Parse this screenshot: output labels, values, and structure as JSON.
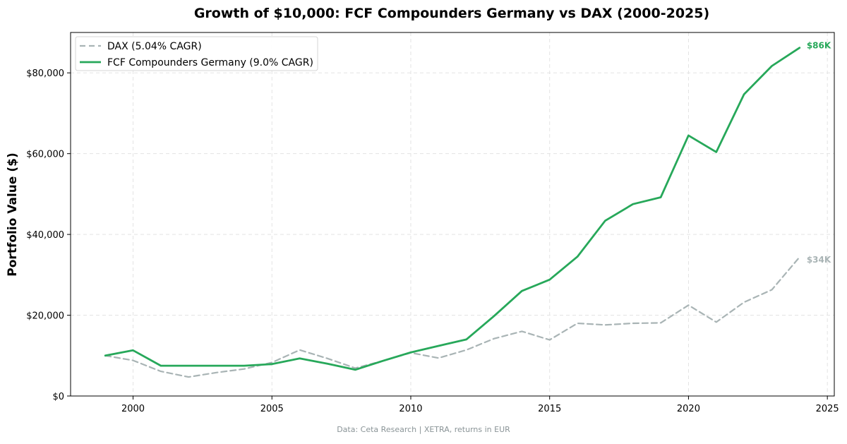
{
  "chart_data": {
    "type": "line",
    "title": "Growth of $10,000: FCF Compounders Germany vs DAX (2000-2025)",
    "xlabel": "",
    "ylabel": "Portfolio Value ($)",
    "xlim": [
      1997.75,
      2025.25
    ],
    "ylim": [
      0,
      90000
    ],
    "grid": true,
    "legend_position": "top-left",
    "x_ticks": [
      2000,
      2005,
      2010,
      2015,
      2020,
      2025
    ],
    "x_tick_labels": [
      "2000",
      "2005",
      "2010",
      "2015",
      "2020",
      "2025"
    ],
    "y_ticks": [
      0,
      20000,
      40000,
      60000,
      80000
    ],
    "y_tick_labels": [
      "$0",
      "$20,000",
      "$40,000",
      "$60,000",
      "$80,000"
    ],
    "x": [
      1999,
      2000,
      2001,
      2002,
      2003,
      2004,
      2005,
      2006,
      2007,
      2008,
      2009,
      2010,
      2011,
      2012,
      2013,
      2014,
      2015,
      2016,
      2017,
      2018,
      2019,
      2020,
      2021,
      2022,
      2023,
      2024
    ],
    "series": [
      {
        "name": "DAX (5.04% CAGR)",
        "color": "#a9b4b5",
        "dashed": true,
        "values": [
          10000,
          8800,
          6100,
          4700,
          5800,
          6700,
          8300,
          11400,
          9300,
          6900,
          8700,
          10700,
          9400,
          11400,
          14200,
          16000,
          13900,
          18000,
          17600,
          18000,
          18100,
          22500,
          18300,
          23200,
          26300,
          34400
        ],
        "end_label": "$34K"
      },
      {
        "name": "FCF Compounders Germany (9.0% CAGR)",
        "color": "#27a85a",
        "dashed": false,
        "values": [
          10000,
          11300,
          7500,
          7500,
          7500,
          7500,
          7900,
          9300,
          8000,
          6500,
          8700,
          10800,
          12400,
          14000,
          19800,
          26000,
          28800,
          34500,
          43400,
          47500,
          49200,
          64500,
          60400,
          74700,
          81700,
          86200
        ],
        "end_label": "$86K"
      }
    ],
    "footnote": "Data: Ceta Research | XETRA, returns in EUR"
  }
}
